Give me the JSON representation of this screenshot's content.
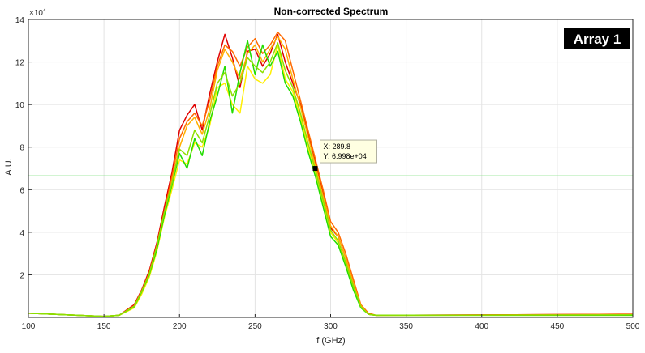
{
  "chart_data": {
    "type": "line",
    "title": "Non-corrected Spectrum",
    "xlabel": "f (GHz)",
    "ylabel": "A.U.",
    "y_exponent_label": "×10",
    "y_exponent_power": "4",
    "xlim": [
      100,
      500
    ],
    "ylim": [
      0,
      140000
    ],
    "x_ticks": [
      100,
      150,
      200,
      250,
      300,
      350,
      400,
      450,
      500
    ],
    "y_ticks": [
      20000,
      40000,
      60000,
      80000,
      100000,
      120000,
      140000
    ],
    "y_tick_labels": [
      "2",
      "4",
      "6",
      "8",
      "10",
      "12",
      "14"
    ],
    "grid": true,
    "legend": "none",
    "badge": {
      "text": "Array 1",
      "bg": "#000000",
      "fg": "#ffffff"
    },
    "datatip": {
      "x": 289.8,
      "y": 69980,
      "x_text": "X: 289.8",
      "y_text": "Y: 6.998e+04"
    },
    "reference_line": {
      "y": 66500,
      "color": "#88e088"
    },
    "series": [
      {
        "color": "#e00000",
        "x": [
          100,
          150,
          160,
          170,
          175,
          180,
          185,
          190,
          195,
          200,
          205,
          210,
          215,
          220,
          225,
          230,
          235,
          240,
          245,
          250,
          255,
          260,
          265,
          270,
          275,
          280,
          285,
          290,
          295,
          300,
          305,
          310,
          315,
          320,
          325,
          330,
          500
        ],
        "y": [
          2000,
          500,
          1000,
          6000,
          13000,
          22000,
          35000,
          52000,
          68000,
          88000,
          95000,
          100000,
          88000,
          105000,
          120000,
          133000,
          122000,
          108000,
          125000,
          126000,
          118000,
          124000,
          133000,
          120000,
          110000,
          100000,
          86000,
          72000,
          58000,
          42000,
          38000,
          28000,
          16000,
          5000,
          1500,
          1000,
          1500
        ]
      },
      {
        "color": "#ff6a00",
        "x": [
          100,
          150,
          160,
          170,
          175,
          180,
          185,
          190,
          195,
          200,
          205,
          210,
          215,
          220,
          225,
          230,
          235,
          240,
          245,
          250,
          255,
          260,
          265,
          270,
          275,
          280,
          285,
          290,
          295,
          300,
          305,
          310,
          315,
          320,
          325,
          330,
          500
        ],
        "y": [
          2000,
          500,
          1000,
          5500,
          12500,
          21000,
          34000,
          50000,
          66000,
          84000,
          92000,
          96000,
          90000,
          102000,
          118000,
          128000,
          125000,
          118000,
          127000,
          131000,
          124000,
          128000,
          134000,
          130000,
          116000,
          102000,
          88000,
          74000,
          60000,
          45000,
          40000,
          30000,
          18000,
          6000,
          2000,
          1000,
          1500
        ]
      },
      {
        "color": "#ffb000",
        "x": [
          100,
          150,
          160,
          170,
          175,
          180,
          185,
          190,
          195,
          200,
          205,
          210,
          215,
          220,
          225,
          230,
          235,
          240,
          245,
          250,
          255,
          260,
          265,
          270,
          275,
          280,
          285,
          290,
          295,
          300,
          305,
          310,
          315,
          320,
          325,
          330,
          500
        ],
        "y": [
          2000,
          500,
          1000,
          5000,
          12000,
          20000,
          33000,
          49000,
          64000,
          80000,
          90000,
          94000,
          86000,
          98000,
          116000,
          126000,
          120000,
          112000,
          124000,
          128000,
          120000,
          126000,
          132000,
          126000,
          112000,
          99000,
          85000,
          71000,
          57000,
          43000,
          38000,
          28000,
          16000,
          5500,
          1500,
          1000,
          1200
        ]
      },
      {
        "color": "#ffee00",
        "x": [
          100,
          150,
          160,
          170,
          175,
          180,
          185,
          190,
          195,
          200,
          205,
          210,
          215,
          220,
          225,
          230,
          235,
          240,
          245,
          250,
          255,
          260,
          265,
          270,
          275,
          280,
          285,
          290,
          295,
          300,
          305,
          310,
          315,
          320,
          325,
          330,
          500
        ],
        "y": [
          2000,
          500,
          1000,
          4500,
          11000,
          19000,
          31000,
          47000,
          60000,
          74000,
          72000,
          82000,
          80000,
          90000,
          108000,
          110000,
          100000,
          96000,
          118000,
          112000,
          110000,
          114000,
          128000,
          112000,
          106000,
          94000,
          80000,
          68000,
          54000,
          40000,
          35000,
          25000,
          14000,
          5000,
          1500,
          1000,
          1000
        ]
      },
      {
        "color": "#22dd00",
        "x": [
          100,
          150,
          160,
          170,
          175,
          180,
          185,
          190,
          195,
          200,
          205,
          210,
          215,
          220,
          225,
          230,
          235,
          240,
          245,
          250,
          255,
          260,
          265,
          270,
          275,
          280,
          285,
          290,
          295,
          300,
          305,
          310,
          315,
          320,
          325,
          330,
          500
        ],
        "y": [
          2000,
          500,
          1000,
          5000,
          12000,
          20000,
          32000,
          48000,
          62000,
          77000,
          70000,
          84000,
          76000,
          92000,
          104000,
          118000,
          96000,
          115000,
          130000,
          114000,
          128000,
          118000,
          125000,
          110000,
          104000,
          92000,
          78000,
          66000,
          52000,
          38000,
          34000,
          24000,
          13000,
          4500,
          1500,
          1000,
          1000
        ]
      },
      {
        "color": "#8de000",
        "x": [
          100,
          150,
          160,
          170,
          175,
          180,
          185,
          190,
          195,
          200,
          205,
          210,
          215,
          220,
          225,
          230,
          235,
          240,
          245,
          250,
          255,
          260,
          265,
          270,
          275,
          280,
          285,
          290,
          295,
          300,
          305,
          310,
          315,
          320,
          325,
          330,
          500
        ],
        "y": [
          2000,
          500,
          1000,
          5200,
          12300,
          20500,
          33500,
          49500,
          63000,
          79000,
          76000,
          88000,
          82000,
          95000,
          110000,
          115000,
          104000,
          110000,
          122000,
          118000,
          115000,
          120000,
          129000,
          116000,
          108000,
          96000,
          82000,
          69000,
          55000,
          41000,
          36000,
          26000,
          15000,
          5000,
          1500,
          1000,
          1200
        ]
      }
    ]
  }
}
